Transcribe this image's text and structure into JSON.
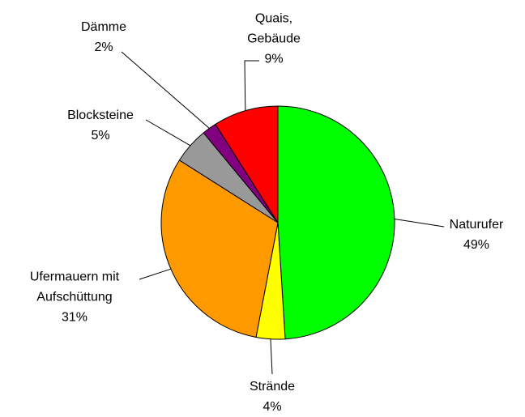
{
  "chart_data": {
    "type": "pie",
    "categories": [
      "Naturufer",
      "Strände",
      "Ufermauern mit Aufschüttung",
      "Blocksteine",
      "Dämme",
      "Quais, Gebäude"
    ],
    "values": [
      49,
      4,
      31,
      5,
      2,
      9
    ],
    "value_labels": [
      "49%",
      "4%",
      "31%",
      "5%",
      "2%",
      "9%"
    ],
    "colors": [
      "#00ff00",
      "#ffff00",
      "#ff9900",
      "#999999",
      "#800080",
      "#ff0000"
    ]
  }
}
